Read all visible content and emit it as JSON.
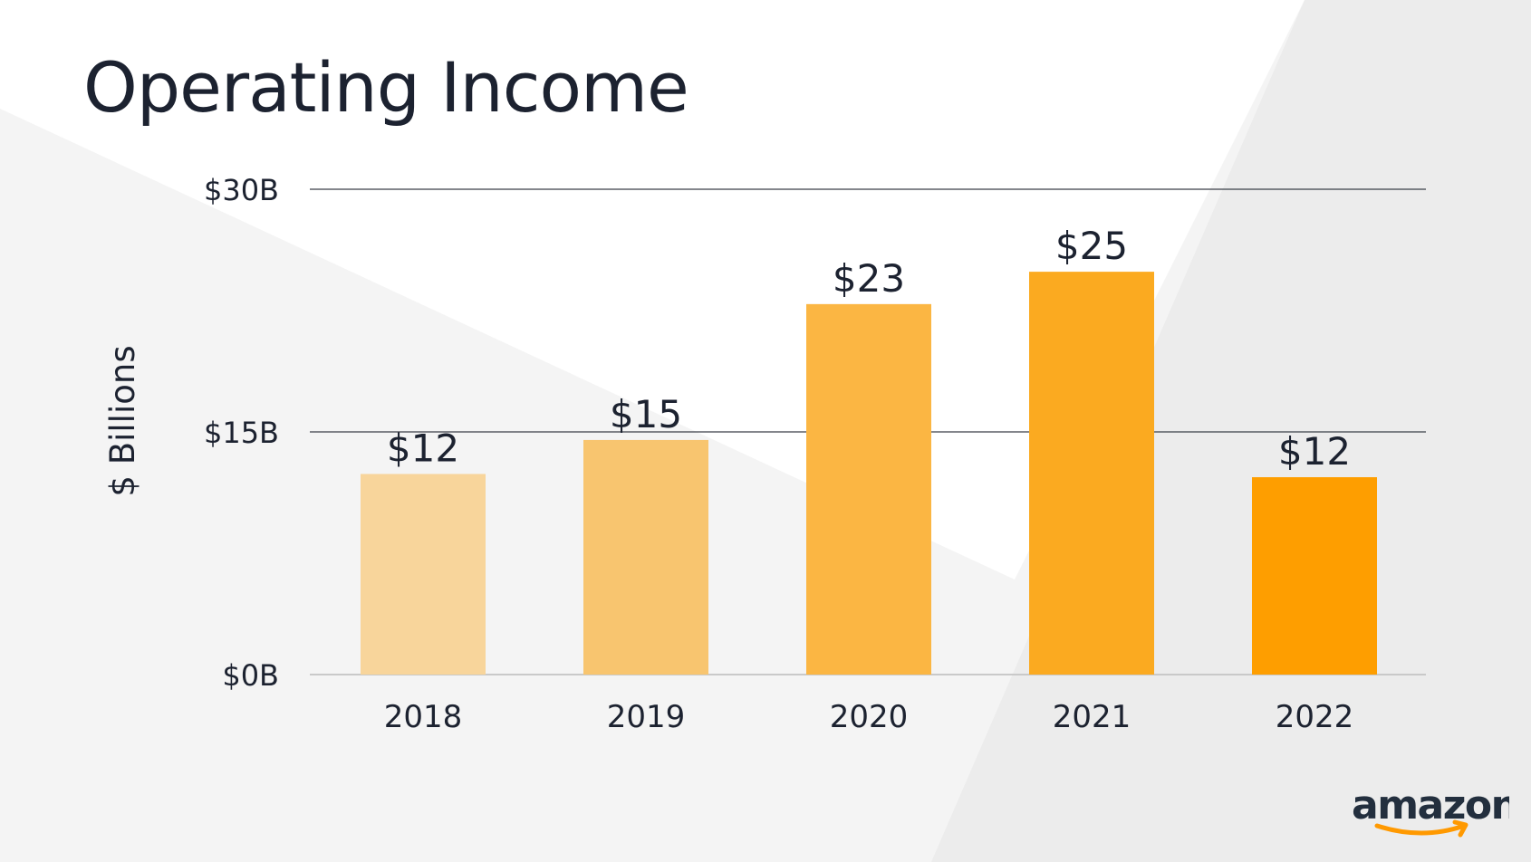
{
  "slide": {
    "title": "Operating Income",
    "logo_text": "amazon"
  },
  "colors": {
    "background": "#f4f4f4",
    "background_light": "#ffffff",
    "background_mid": "#ebebeb",
    "text": "#1c2230",
    "gridline": "#3a3f47",
    "logo_smile": "#ff9900"
  },
  "chart_data": {
    "type": "bar",
    "title": "Operating Income",
    "xlabel": "",
    "ylabel": "$ Billions",
    "categories": [
      "2018",
      "2019",
      "2020",
      "2021",
      "2022"
    ],
    "values": [
      12.4,
      14.5,
      22.9,
      24.9,
      12.2
    ],
    "data_labels": [
      "$12",
      "$15",
      "$23",
      "$25",
      "$12"
    ],
    "bar_colors": [
      "#f8d59b",
      "#f8c56f",
      "#fbb643",
      "#fbaa20",
      "#fe9e00"
    ],
    "ylim": [
      0,
      30
    ],
    "yticks": [
      0,
      15,
      30
    ],
    "ytick_labels": [
      "$0B",
      "$15B",
      "$30B"
    ],
    "grid": true,
    "legend": "none"
  }
}
